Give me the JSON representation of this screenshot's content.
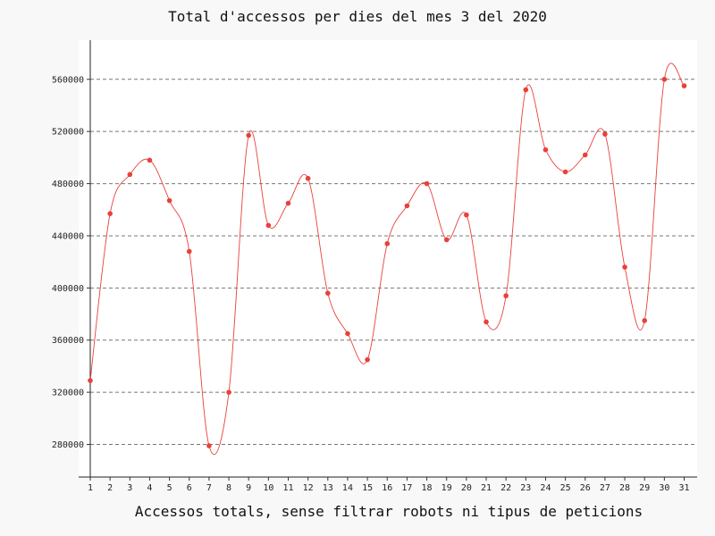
{
  "chart_data": {
    "type": "line",
    "title": "Total d'accessos per dies del mes 3 del 2020",
    "xlabel": "Accessos totals, sense filtrar robots ni tipus de peticions",
    "ylabel": "",
    "x": [
      "1",
      "2",
      "3",
      "4",
      "5",
      "6",
      "7",
      "8",
      "9",
      "10",
      "11",
      "12",
      "13",
      "14",
      "15",
      "16",
      "17",
      "18",
      "19",
      "20",
      "21",
      "22",
      "23",
      "24",
      "25",
      "26",
      "27",
      "28",
      "29",
      "30",
      "31"
    ],
    "series": [
      {
        "values": [
          329000,
          457000,
          487000,
          498000,
          467000,
          428000,
          279000,
          320000,
          517000,
          448000,
          465000,
          484000,
          396000,
          365000,
          345000,
          434000,
          463000,
          480000,
          437000,
          456000,
          374000,
          394000,
          552000,
          506000,
          489000,
          502000,
          518000,
          416000,
          375000,
          560000,
          555000
        ],
        "color": "#e8413a"
      }
    ],
    "ylim": [
      255000,
      590000
    ],
    "yticks": [
      "280000",
      "320000",
      "360000",
      "400000",
      "440000",
      "480000",
      "520000",
      "560000"
    ],
    "grid": true,
    "grid_style": "dashed",
    "background": "#ffffff"
  }
}
